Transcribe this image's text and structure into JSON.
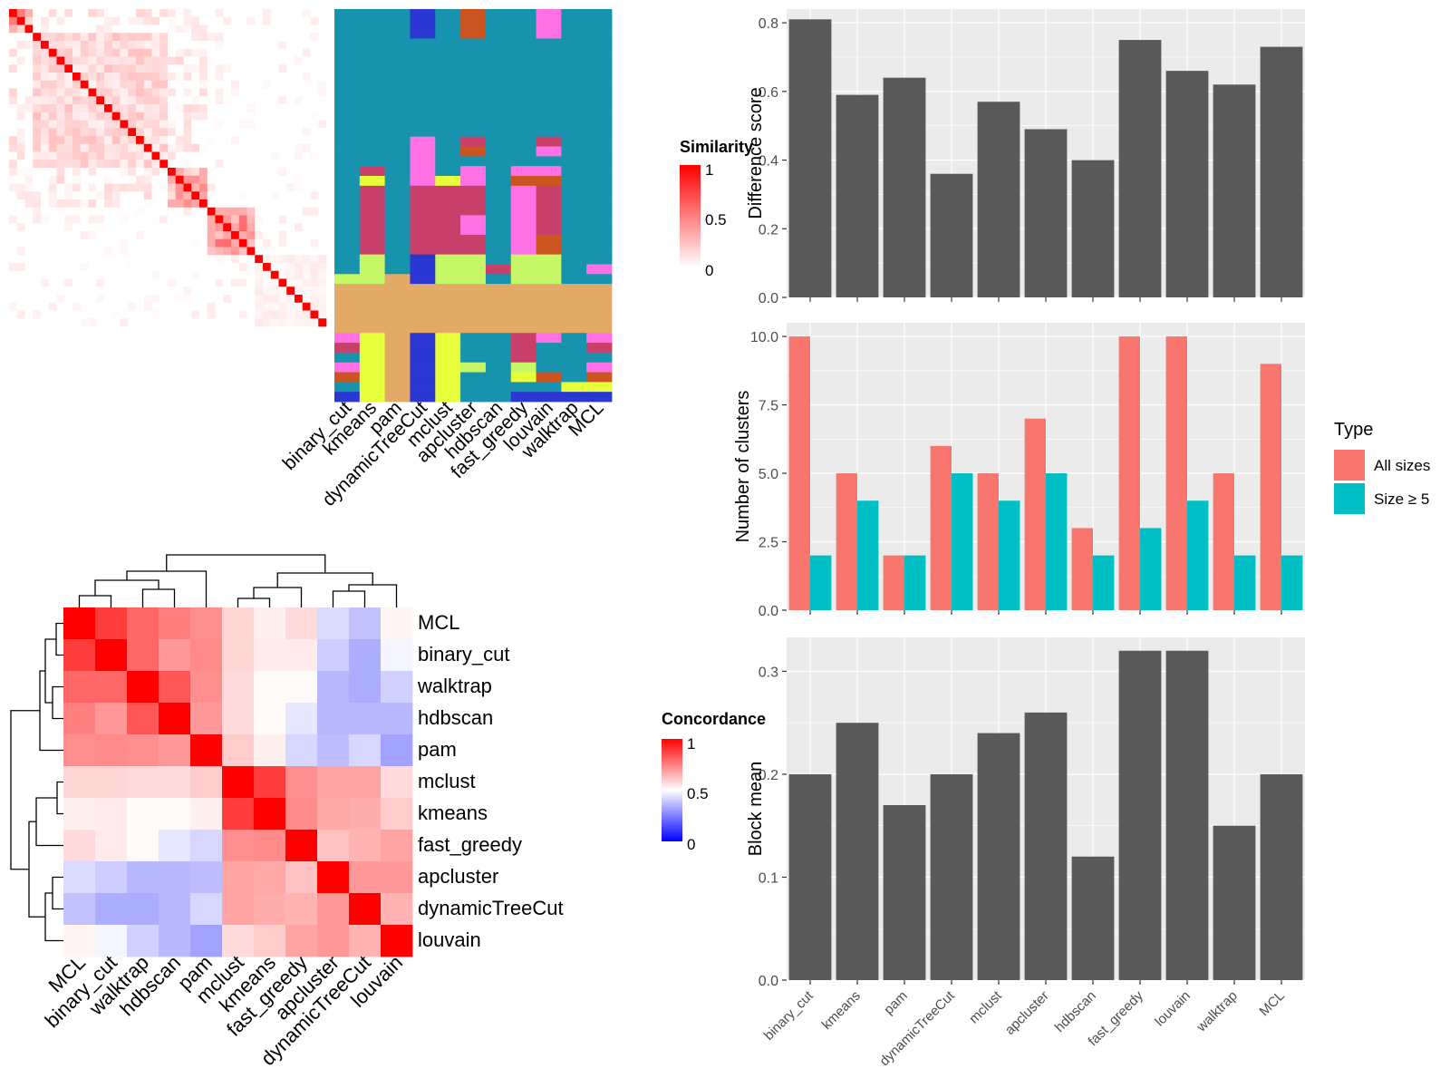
{
  "colors": {
    "panel_bg": "#EBEBEB",
    "grid": "#FFFFFF",
    "bar_fill": "#595959",
    "all_sizes": "#F8766D",
    "size_ge_5": "#00BFC4",
    "sim_low": "#FFFFFF",
    "sim_high": "#FF0000",
    "conc_low": "#0000FF",
    "conc_mid": "#FFFFFF",
    "conc_high": "#FF0000"
  },
  "methods": [
    "binary_cut",
    "kmeans",
    "pam",
    "dynamicTreeCut",
    "mclust",
    "apcluster",
    "hdbscan",
    "fast_greedy",
    "louvain",
    "walktrap",
    "MCL"
  ],
  "similarity_legend": {
    "title": "Similarity",
    "ticks": [
      "1",
      "0.5",
      "0"
    ]
  },
  "concordance_legend": {
    "title": "Concordance",
    "ticks": [
      "1",
      "0.5",
      "0"
    ]
  },
  "type_legend": {
    "title": "Type",
    "items": [
      "All sizes",
      "Size ≥ 5"
    ]
  },
  "chart_data": [
    {
      "id": "similarity_heatmap",
      "type": "heatmap",
      "n_terms": 40,
      "title": "",
      "legend": {
        "title": "Similarity",
        "range": [
          0,
          1
        ]
      },
      "blocks": [
        {
          "start": 1,
          "end": 3,
          "mean": 0.35
        },
        {
          "start": 4,
          "end": 20,
          "mean": 0.15
        },
        {
          "start": 21,
          "end": 25,
          "mean": 0.3
        },
        {
          "start": 26,
          "end": 31,
          "mean": 0.35
        },
        {
          "start": 32,
          "end": 40,
          "mean": 0.05
        }
      ]
    },
    {
      "id": "cluster_assignment_matrix",
      "type": "heatmap",
      "columns": [
        "binary_cut",
        "kmeans",
        "pam",
        "dynamicTreeCut",
        "mclust",
        "apcluster",
        "hdbscan",
        "fast_greedy",
        "louvain",
        "walktrap",
        "MCL"
      ],
      "palette": [
        "#1793AD",
        "#E2AA66",
        "#C8406A",
        "#FF71E5",
        "#C6F766",
        "#E6FF3A",
        "#CB5421",
        "#2B37D1"
      ],
      "rows": [
        [
          0,
          0,
          0,
          7,
          0,
          6,
          0,
          0,
          3,
          0,
          0
        ],
        [
          0,
          0,
          0,
          7,
          0,
          6,
          0,
          0,
          3,
          0,
          0
        ],
        [
          0,
          0,
          0,
          7,
          0,
          6,
          0,
          0,
          3,
          0,
          0
        ],
        [
          0,
          0,
          0,
          0,
          0,
          0,
          0,
          0,
          0,
          0,
          0
        ],
        [
          0,
          0,
          0,
          0,
          0,
          0,
          0,
          0,
          0,
          0,
          0
        ],
        [
          0,
          0,
          0,
          0,
          0,
          0,
          0,
          0,
          0,
          0,
          0
        ],
        [
          0,
          0,
          0,
          0,
          0,
          0,
          0,
          0,
          0,
          0,
          0
        ],
        [
          0,
          0,
          0,
          0,
          0,
          0,
          0,
          0,
          0,
          0,
          0
        ],
        [
          0,
          0,
          0,
          0,
          0,
          0,
          0,
          0,
          0,
          0,
          0
        ],
        [
          0,
          0,
          0,
          0,
          0,
          0,
          0,
          0,
          0,
          0,
          0
        ],
        [
          0,
          0,
          0,
          0,
          0,
          0,
          0,
          0,
          0,
          0,
          0
        ],
        [
          0,
          0,
          0,
          0,
          0,
          0,
          0,
          0,
          0,
          0,
          0
        ],
        [
          0,
          0,
          0,
          0,
          0,
          0,
          0,
          0,
          0,
          0,
          0
        ],
        [
          0,
          0,
          0,
          3,
          0,
          2,
          0,
          0,
          2,
          0,
          0
        ],
        [
          0,
          0,
          0,
          3,
          0,
          6,
          0,
          0,
          3,
          0,
          0
        ],
        [
          0,
          0,
          0,
          3,
          0,
          0,
          0,
          0,
          0,
          0,
          0
        ],
        [
          0,
          2,
          0,
          3,
          0,
          3,
          0,
          3,
          3,
          0,
          0
        ],
        [
          0,
          5,
          0,
          3,
          5,
          3,
          0,
          6,
          6,
          0,
          0
        ],
        [
          0,
          2,
          0,
          2,
          2,
          2,
          0,
          3,
          2,
          0,
          0
        ],
        [
          0,
          2,
          0,
          2,
          2,
          2,
          0,
          3,
          2,
          0,
          0
        ],
        [
          0,
          2,
          0,
          2,
          2,
          2,
          0,
          3,
          2,
          0,
          0
        ],
        [
          0,
          2,
          0,
          2,
          2,
          3,
          0,
          3,
          2,
          0,
          0
        ],
        [
          0,
          2,
          0,
          2,
          2,
          3,
          0,
          3,
          2,
          0,
          0
        ],
        [
          0,
          2,
          0,
          2,
          2,
          2,
          0,
          3,
          6,
          0,
          0
        ],
        [
          0,
          2,
          0,
          2,
          2,
          2,
          0,
          3,
          6,
          0,
          0
        ],
        [
          0,
          4,
          0,
          7,
          4,
          4,
          0,
          4,
          4,
          0,
          0
        ],
        [
          0,
          4,
          0,
          7,
          4,
          4,
          2,
          4,
          4,
          0,
          3
        ],
        [
          4,
          4,
          1,
          7,
          4,
          4,
          0,
          4,
          4,
          0,
          0
        ],
        [
          1,
          1,
          1,
          1,
          1,
          1,
          1,
          1,
          1,
          1,
          1
        ],
        [
          1,
          1,
          1,
          1,
          1,
          1,
          1,
          1,
          1,
          1,
          1
        ],
        [
          1,
          1,
          1,
          1,
          1,
          1,
          1,
          1,
          1,
          1,
          1
        ],
        [
          1,
          1,
          1,
          1,
          1,
          1,
          1,
          1,
          1,
          1,
          1
        ],
        [
          1,
          1,
          1,
          1,
          1,
          1,
          1,
          1,
          1,
          1,
          1
        ],
        [
          3,
          5,
          1,
          7,
          5,
          0,
          0,
          2,
          3,
          0,
          3
        ],
        [
          2,
          5,
          1,
          7,
          5,
          0,
          0,
          2,
          0,
          0,
          2
        ],
        [
          0,
          5,
          1,
          7,
          5,
          0,
          0,
          2,
          0,
          0,
          0
        ],
        [
          3,
          5,
          1,
          7,
          5,
          4,
          0,
          4,
          0,
          0,
          3
        ],
        [
          6,
          5,
          1,
          7,
          5,
          0,
          0,
          5,
          6,
          0,
          6
        ],
        [
          0,
          5,
          1,
          7,
          5,
          0,
          0,
          0,
          0,
          5,
          5
        ],
        [
          7,
          5,
          1,
          7,
          5,
          0,
          0,
          7,
          7,
          7,
          7
        ]
      ]
    },
    {
      "id": "concordance_heatmap",
      "type": "heatmap",
      "rows": [
        "MCL",
        "binary_cut",
        "walktrap",
        "hdbscan",
        "pam",
        "mclust",
        "kmeans",
        "fast_greedy",
        "apcluster",
        "dynamicTreeCut",
        "louvain"
      ],
      "columns": [
        "MCL",
        "binary_cut",
        "walktrap",
        "hdbscan",
        "pam",
        "mclust",
        "kmeans",
        "fast_greedy",
        "apcluster",
        "dynamicTreeCut",
        "louvain"
      ],
      "legend": {
        "title": "Concordance",
        "range": [
          0,
          1
        ],
        "mid": 0.5
      },
      "values": [
        [
          1.0,
          0.88,
          0.8,
          0.75,
          0.72,
          0.58,
          0.53,
          0.57,
          0.43,
          0.38,
          0.52
        ],
        [
          0.88,
          1.0,
          0.8,
          0.7,
          0.73,
          0.58,
          0.54,
          0.54,
          0.4,
          0.34,
          0.48
        ],
        [
          0.8,
          0.8,
          1.0,
          0.83,
          0.72,
          0.57,
          0.51,
          0.51,
          0.36,
          0.34,
          0.41
        ],
        [
          0.75,
          0.7,
          0.83,
          1.0,
          0.7,
          0.57,
          0.51,
          0.45,
          0.36,
          0.36,
          0.36
        ],
        [
          0.72,
          0.73,
          0.72,
          0.7,
          1.0,
          0.6,
          0.53,
          0.42,
          0.37,
          0.42,
          0.32
        ],
        [
          0.58,
          0.58,
          0.57,
          0.57,
          0.6,
          1.0,
          0.88,
          0.72,
          0.68,
          0.68,
          0.57
        ],
        [
          0.53,
          0.54,
          0.51,
          0.51,
          0.53,
          0.88,
          1.0,
          0.73,
          0.67,
          0.66,
          0.6
        ],
        [
          0.57,
          0.54,
          0.51,
          0.45,
          0.42,
          0.72,
          0.73,
          1.0,
          0.62,
          0.65,
          0.68
        ],
        [
          0.43,
          0.4,
          0.36,
          0.36,
          0.37,
          0.68,
          0.67,
          0.62,
          1.0,
          0.7,
          0.7
        ],
        [
          0.38,
          0.34,
          0.34,
          0.36,
          0.42,
          0.68,
          0.66,
          0.65,
          0.7,
          1.0,
          0.65
        ],
        [
          0.52,
          0.48,
          0.41,
          0.36,
          0.32,
          0.57,
          0.6,
          0.68,
          0.7,
          0.65,
          1.0
        ]
      ],
      "row_dendrogram": true,
      "column_dendrogram": true
    },
    {
      "id": "difference_score",
      "type": "bar",
      "categories": [
        "binary_cut",
        "kmeans",
        "pam",
        "dynamicTreeCut",
        "mclust",
        "apcluster",
        "hdbscan",
        "fast_greedy",
        "louvain",
        "walktrap",
        "MCL"
      ],
      "values": [
        0.81,
        0.59,
        0.64,
        0.36,
        0.57,
        0.49,
        0.4,
        0.75,
        0.66,
        0.62,
        0.73
      ],
      "xlabel": "",
      "ylabel": "Difference score",
      "ylim": [
        0,
        0.84
      ],
      "yticks": [
        0.0,
        0.2,
        0.4,
        0.6,
        0.8
      ],
      "ytick_labels": [
        "0.0",
        "0.2",
        "0.4",
        "0.6",
        "0.8"
      ],
      "grid": true
    },
    {
      "id": "number_of_clusters",
      "type": "bar",
      "categories": [
        "binary_cut",
        "kmeans",
        "pam",
        "dynamicTreeCut",
        "mclust",
        "apcluster",
        "hdbscan",
        "fast_greedy",
        "louvain",
        "walktrap",
        "MCL"
      ],
      "series": [
        {
          "name": "All sizes",
          "values": [
            10,
            5,
            2,
            6,
            5,
            7,
            3,
            10,
            10,
            5,
            9
          ]
        },
        {
          "name": "Size ≥ 5",
          "values": [
            2,
            4,
            2,
            5,
            4,
            5,
            2,
            3,
            4,
            2,
            2
          ]
        }
      ],
      "xlabel": "",
      "ylabel": "Number of clusters",
      "ylim": [
        0,
        10.5
      ],
      "yticks": [
        0.0,
        2.5,
        5.0,
        7.5,
        10.0
      ],
      "ytick_labels": [
        "0.0",
        "2.5",
        "5.0",
        "7.5",
        "10.0"
      ],
      "legend_title": "Type",
      "legend_position": "right",
      "grid": true
    },
    {
      "id": "block_mean",
      "type": "bar",
      "categories": [
        "binary_cut",
        "kmeans",
        "pam",
        "dynamicTreeCut",
        "mclust",
        "apcluster",
        "hdbscan",
        "fast_greedy",
        "louvain",
        "walktrap",
        "MCL"
      ],
      "values": [
        0.2,
        0.25,
        0.17,
        0.2,
        0.24,
        0.26,
        0.12,
        0.32,
        0.32,
        0.15,
        0.2
      ],
      "xlabel": "",
      "ylabel": "Block mean",
      "ylim": [
        0,
        0.333
      ],
      "yticks": [
        0.0,
        0.1,
        0.2,
        0.3
      ],
      "ytick_labels": [
        "0.0",
        "0.1",
        "0.2",
        "0.3"
      ],
      "grid": true
    }
  ]
}
